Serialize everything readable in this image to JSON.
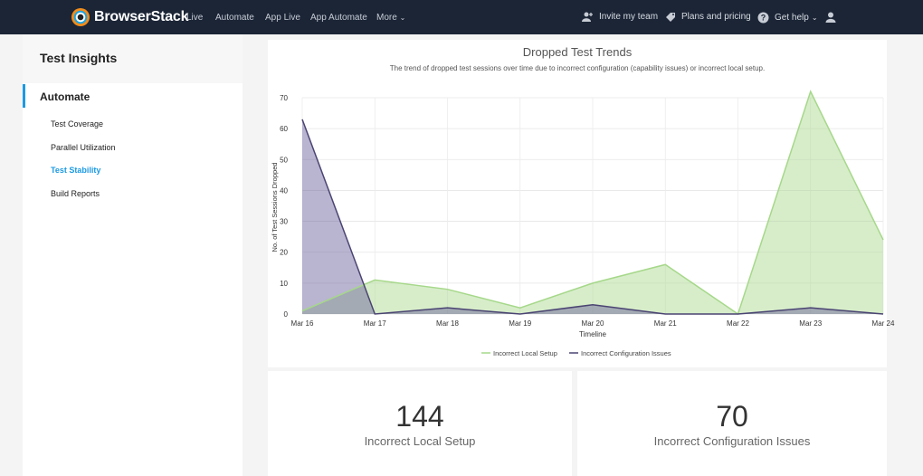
{
  "nav": {
    "brand": "BrowserStack",
    "links": [
      "Live",
      "Automate",
      "App Live",
      "App Automate",
      "More"
    ],
    "invite": "Invite my team",
    "plans": "Plans and pricing",
    "help": "Get help"
  },
  "sidebar": {
    "title": "Test Insights",
    "section": "Automate",
    "items": [
      {
        "label": "Test Coverage",
        "active": false
      },
      {
        "label": "Parallel Utilization",
        "active": false
      },
      {
        "label": "Test Stability",
        "active": true
      },
      {
        "label": "Build Reports",
        "active": false
      }
    ]
  },
  "chart": {
    "title": "Dropped Test Trends",
    "subtitle": "The trend of dropped test sessions over time due to incorrect configuration (capability issues) or incorrect local setup."
  },
  "chart_data": {
    "type": "area",
    "title": "Dropped Test Trends",
    "xlabel": "Timeline",
    "ylabel": "No. of Test Sessions Dropped",
    "ylim": [
      0,
      70
    ],
    "yticks": [
      0,
      10,
      20,
      30,
      40,
      50,
      60,
      70
    ],
    "categories": [
      "Mar 16",
      "Mar 17",
      "Mar 18",
      "Mar 19",
      "Mar 20",
      "Mar 21",
      "Mar 22",
      "Mar 23",
      "Mar 24"
    ],
    "series": [
      {
        "name": "Incorrect Local Setup",
        "color": "#a6d88a",
        "values": [
          1,
          11,
          8,
          2,
          10,
          16,
          0,
          72,
          24
        ]
      },
      {
        "name": "Incorrect Configuration Issues",
        "color": "#4a4472",
        "values": [
          63,
          0,
          2,
          0,
          3,
          0,
          0,
          2,
          0
        ]
      }
    ],
    "legend": "bottom",
    "grid": true
  },
  "stats": [
    {
      "value": "144",
      "label": "Incorrect Local Setup"
    },
    {
      "value": "70",
      "label": "Incorrect Configuration Issues"
    }
  ]
}
